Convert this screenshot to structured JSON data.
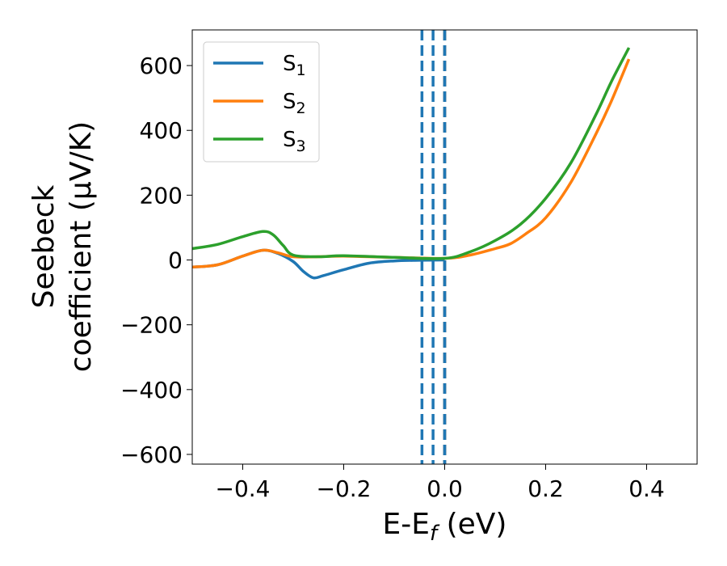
{
  "chart_data": {
    "type": "line",
    "xlabel": "E-E",
    "xlabel_sub": "f",
    "xlabel_unit": " (eV)",
    "ylabel_line1": "Seebeck",
    "ylabel_line2": "coefficient  (μV/K)",
    "xlim": [
      -0.5,
      0.5
    ],
    "ylim": [
      -630,
      710
    ],
    "xticks": [
      -0.4,
      -0.2,
      0.0,
      0.2,
      0.4
    ],
    "xtick_labels": [
      "−0.4",
      "−0.2",
      "0.0",
      "0.2",
      "0.4"
    ],
    "yticks": [
      -600,
      -400,
      -200,
      0,
      200,
      400,
      600
    ],
    "ytick_labels": [
      "−600",
      "−400",
      "−200",
      "0",
      "200",
      "400",
      "600"
    ],
    "legend_position": "top-left",
    "grid": false,
    "vlines": [
      {
        "x": -0.045,
        "style": "dashed",
        "color": "#1f77b4"
      },
      {
        "x": -0.023,
        "style": "dashed",
        "color": "#1f77b4"
      },
      {
        "x": 0.0,
        "style": "dashed",
        "color": "#000000"
      },
      {
        "x": 0.0,
        "style": "dashed",
        "color": "#1f77b4"
      }
    ],
    "series": [
      {
        "name": "S",
        "sub": "1",
        "color": "#1f77b4",
        "x": [
          -0.5,
          -0.45,
          -0.4,
          -0.36,
          -0.33,
          -0.3,
          -0.28,
          -0.26,
          -0.24,
          -0.2,
          -0.15,
          -0.1,
          -0.05,
          0.0
        ],
        "y": [
          -22,
          -15,
          12,
          30,
          20,
          -5,
          -35,
          -55,
          -48,
          -30,
          -10,
          -3,
          -1,
          0
        ]
      },
      {
        "name": "S",
        "sub": "2",
        "color": "#ff7f0e",
        "x": [
          -0.5,
          -0.45,
          -0.4,
          -0.36,
          -0.33,
          -0.3,
          -0.25,
          -0.2,
          -0.1,
          0.0,
          0.05,
          0.1,
          0.13,
          0.16,
          0.2,
          0.25,
          0.3,
          0.33,
          0.365
        ],
        "y": [
          -22,
          -15,
          12,
          30,
          22,
          10,
          10,
          12,
          8,
          5,
          15,
          35,
          50,
          80,
          130,
          240,
          390,
          490,
          620
        ]
      },
      {
        "name": "S",
        "sub": "3",
        "color": "#2ca02c",
        "x": [
          -0.5,
          -0.45,
          -0.4,
          -0.36,
          -0.34,
          -0.32,
          -0.3,
          -0.25,
          -0.2,
          -0.1,
          0.0,
          0.05,
          0.1,
          0.15,
          0.2,
          0.25,
          0.3,
          0.33,
          0.365
        ],
        "y": [
          35,
          48,
          72,
          88,
          78,
          45,
          15,
          10,
          13,
          8,
          5,
          25,
          60,
          110,
          190,
          300,
          450,
          550,
          655
        ]
      }
    ]
  }
}
